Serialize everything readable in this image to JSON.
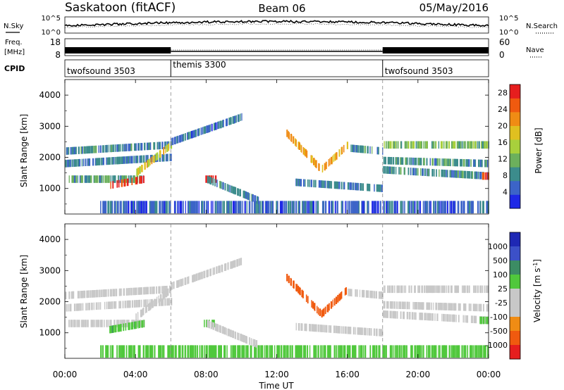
{
  "header": {
    "station": "Saskatoon (fitACF)",
    "beam": "Beam 06",
    "date": "05/May/2016"
  },
  "noise_panel": {
    "left_label": "N.Sky",
    "left_ticks": [
      "10^5",
      "10^0"
    ],
    "right_label": "N.Search",
    "right_ticks": [
      "10^5",
      "10^0"
    ]
  },
  "freq_panel": {
    "left_label_line1": "Freq.",
    "left_label_line2": "[MHz]",
    "left_ticks": [
      "18",
      "8"
    ],
    "right_label": "Nave",
    "right_ticks": [
      "60",
      "0"
    ]
  },
  "cpid": {
    "label": "CPID",
    "segments": [
      {
        "name": "twofsound 3503",
        "start_hour": 0
      },
      {
        "name": "themis 3300",
        "start_hour": 6
      },
      {
        "name": "twofsound 3503",
        "start_hour": 18
      }
    ]
  },
  "colors": {
    "power": [
      "#1e28e6",
      "#3c64c8",
      "#3c8c8c",
      "#6cb05c",
      "#a8d03c",
      "#e0c020",
      "#f08c14",
      "#f05a0f",
      "#e61e1e"
    ],
    "velocity": [
      "#e61e1e",
      "#f05a0f",
      "#f08c14",
      "#c8c8c8",
      "#c8c8c8",
      "#50c83c",
      "#3c8c64",
      "#3c50c8",
      "#1e28b4"
    ],
    "ground_scatter": "#c8c8c8"
  },
  "chart_data": [
    {
      "type": "heatmap",
      "title": "",
      "xlabel": "",
      "ylabel": "Slant Range [km]",
      "x_range_hours": [
        0,
        24
      ],
      "ylim": [
        180,
        4500
      ],
      "yticks": [
        1000,
        2000,
        3000,
        4000
      ],
      "colorbar": {
        "label": "Power [dB]",
        "ticks": [
          4,
          8,
          12,
          16,
          20,
          24,
          28
        ],
        "range": [
          0,
          30
        ]
      },
      "scatter_regions": [
        {
          "feature": "E-region band",
          "t_start": 2.0,
          "t_end": 24.0,
          "range_min": 200,
          "range_max": 600,
          "power_db": 5
        },
        {
          "feature": "morning band 1",
          "t_start": 0.0,
          "t_end": 6.0,
          "range_start": 2200,
          "range_end": 2400,
          "power_db": 8
        },
        {
          "feature": "morning band 2",
          "t_start": 0.0,
          "t_end": 6.0,
          "range_start": 1800,
          "range_end": 2000,
          "power_db": 7
        },
        {
          "feature": "morning band 3",
          "t_start": 0.2,
          "t_end": 4.5,
          "range_start": 1300,
          "range_end": 1300,
          "power_db": 9
        },
        {
          "feature": "morning strong echo",
          "t_start": 2.5,
          "t_end": 4.5,
          "range_start": 1100,
          "range_end": 1300,
          "power_db": 27
        },
        {
          "feature": "dawn arc",
          "t_start": 4.0,
          "t_end": 6.0,
          "range_start": 1500,
          "range_end": 2400,
          "power_db": 18
        },
        {
          "feature": "post-dawn strong echo",
          "t_start": 7.8,
          "t_end": 8.5,
          "range_start": 1300,
          "range_end": 1300,
          "power_db": 27
        },
        {
          "feature": "morning high arc",
          "t_start": 6.0,
          "t_end": 10.0,
          "range_start": 2500,
          "range_end": 3300,
          "power_db": 6
        },
        {
          "feature": "descending trace",
          "t_start": 8.0,
          "t_end": 11.0,
          "range_start": 1300,
          "range_end": 600,
          "power_db": 8
        },
        {
          "feature": "afternoon V echo left",
          "t_start": 12.5,
          "t_end": 14.5,
          "range_start": 2800,
          "range_end": 1600,
          "power_db": 20
        },
        {
          "feature": "afternoon V echo right",
          "t_start": 14.5,
          "t_end": 16.0,
          "range_start": 1600,
          "range_end": 2400,
          "power_db": 20
        },
        {
          "feature": "afternoon lower band",
          "t_start": 13.0,
          "t_end": 18.0,
          "range_start": 1200,
          "range_end": 1000,
          "power_db": 7
        },
        {
          "feature": "afternoon upper band",
          "t_start": 16.0,
          "t_end": 18.0,
          "range_start": 2300,
          "range_end": 2200,
          "power_db": 8
        },
        {
          "feature": "evening band 1",
          "t_start": 18.0,
          "t_end": 24.0,
          "range_start": 2400,
          "range_end": 2400,
          "power_db": 12
        },
        {
          "feature": "evening band 2",
          "t_start": 18.0,
          "t_end": 24.0,
          "range_start": 1900,
          "range_end": 1800,
          "power_db": 9
        },
        {
          "feature": "evening band 3",
          "t_start": 18.0,
          "t_end": 24.0,
          "range_start": 1600,
          "range_end": 1400,
          "power_db": 8
        },
        {
          "feature": "late strong echo",
          "t_start": 23.4,
          "t_end": 24.0,
          "range_start": 1400,
          "range_end": 1400,
          "power_db": 26
        }
      ]
    },
    {
      "type": "heatmap",
      "title": "",
      "xlabel": "Time UT",
      "ylabel": "Slant Range [km]",
      "x_range_hours": [
        0,
        24
      ],
      "xticks": [
        "00:00",
        "04:00",
        "08:00",
        "12:00",
        "16:00",
        "20:00",
        "00:00"
      ],
      "ylim": [
        180,
        4500
      ],
      "yticks": [
        1000,
        2000,
        3000,
        4000
      ],
      "colorbar": {
        "label_main": "Velocity [m s",
        "label_sup": "-1",
        "label_end": "]",
        "ticks": [
          "1000",
          "500",
          "100",
          "25",
          "-25",
          "-100",
          "-500",
          "-1000"
        ]
      },
      "scatter_regions": [
        {
          "feature": "E-region band",
          "t_start": 2.0,
          "t_end": 24.0,
          "range_min": 200,
          "range_max": 600,
          "velocity": 60
        },
        {
          "feature": "morning band 1",
          "t_start": 0.0,
          "t_end": 6.0,
          "range_start": 2200,
          "range_end": 2400,
          "velocity": 0
        },
        {
          "feature": "morning band 2",
          "t_start": 0.0,
          "t_end": 6.0,
          "range_start": 1800,
          "range_end": 2000,
          "velocity": 0
        },
        {
          "feature": "morning band 3",
          "t_start": 0.2,
          "t_end": 4.5,
          "range_start": 1300,
          "range_end": 1300,
          "velocity": 0
        },
        {
          "feature": "morning echo",
          "t_start": 2.5,
          "t_end": 4.5,
          "range_start": 1100,
          "range_end": 1300,
          "velocity": 80
        },
        {
          "feature": "dawn arc",
          "t_start": 4.0,
          "t_end": 6.0,
          "range_start": 1500,
          "range_end": 2400,
          "velocity": 0
        },
        {
          "feature": "post-dawn echo",
          "t_start": 7.8,
          "t_end": 8.5,
          "range_start": 1300,
          "range_end": 1300,
          "velocity": 60
        },
        {
          "feature": "morning high arc",
          "t_start": 6.0,
          "t_end": 10.0,
          "range_start": 2500,
          "range_end": 3300,
          "velocity": 0
        },
        {
          "feature": "descending trace",
          "t_start": 8.0,
          "t_end": 11.0,
          "range_start": 1300,
          "range_end": 600,
          "velocity": 0
        },
        {
          "feature": "afternoon V echo left",
          "t_start": 12.5,
          "t_end": 14.5,
          "range_start": 2800,
          "range_end": 1600,
          "velocity": -200
        },
        {
          "feature": "afternoon V echo right",
          "t_start": 14.5,
          "t_end": 16.0,
          "range_start": 1600,
          "range_end": 2400,
          "velocity": -200
        },
        {
          "feature": "afternoon lower band",
          "t_start": 13.0,
          "t_end": 18.0,
          "range_start": 1200,
          "range_end": 1000,
          "velocity": 0
        },
        {
          "feature": "afternoon upper band",
          "t_start": 16.0,
          "t_end": 18.0,
          "range_start": 2300,
          "range_end": 2200,
          "velocity": 0
        },
        {
          "feature": "evening band 1",
          "t_start": 18.0,
          "t_end": 24.0,
          "range_start": 2400,
          "range_end": 2400,
          "velocity": 0
        },
        {
          "feature": "evening band 2",
          "t_start": 18.0,
          "t_end": 24.0,
          "range_start": 1900,
          "range_end": 1800,
          "velocity": 0
        },
        {
          "feature": "evening band 3",
          "t_start": 18.0,
          "t_end": 24.0,
          "range_start": 1600,
          "range_end": 1400,
          "velocity": 0
        },
        {
          "feature": "late echo",
          "t_start": 23.4,
          "t_end": 24.0,
          "range_start": 1400,
          "range_end": 1400,
          "velocity": 60
        }
      ]
    }
  ]
}
